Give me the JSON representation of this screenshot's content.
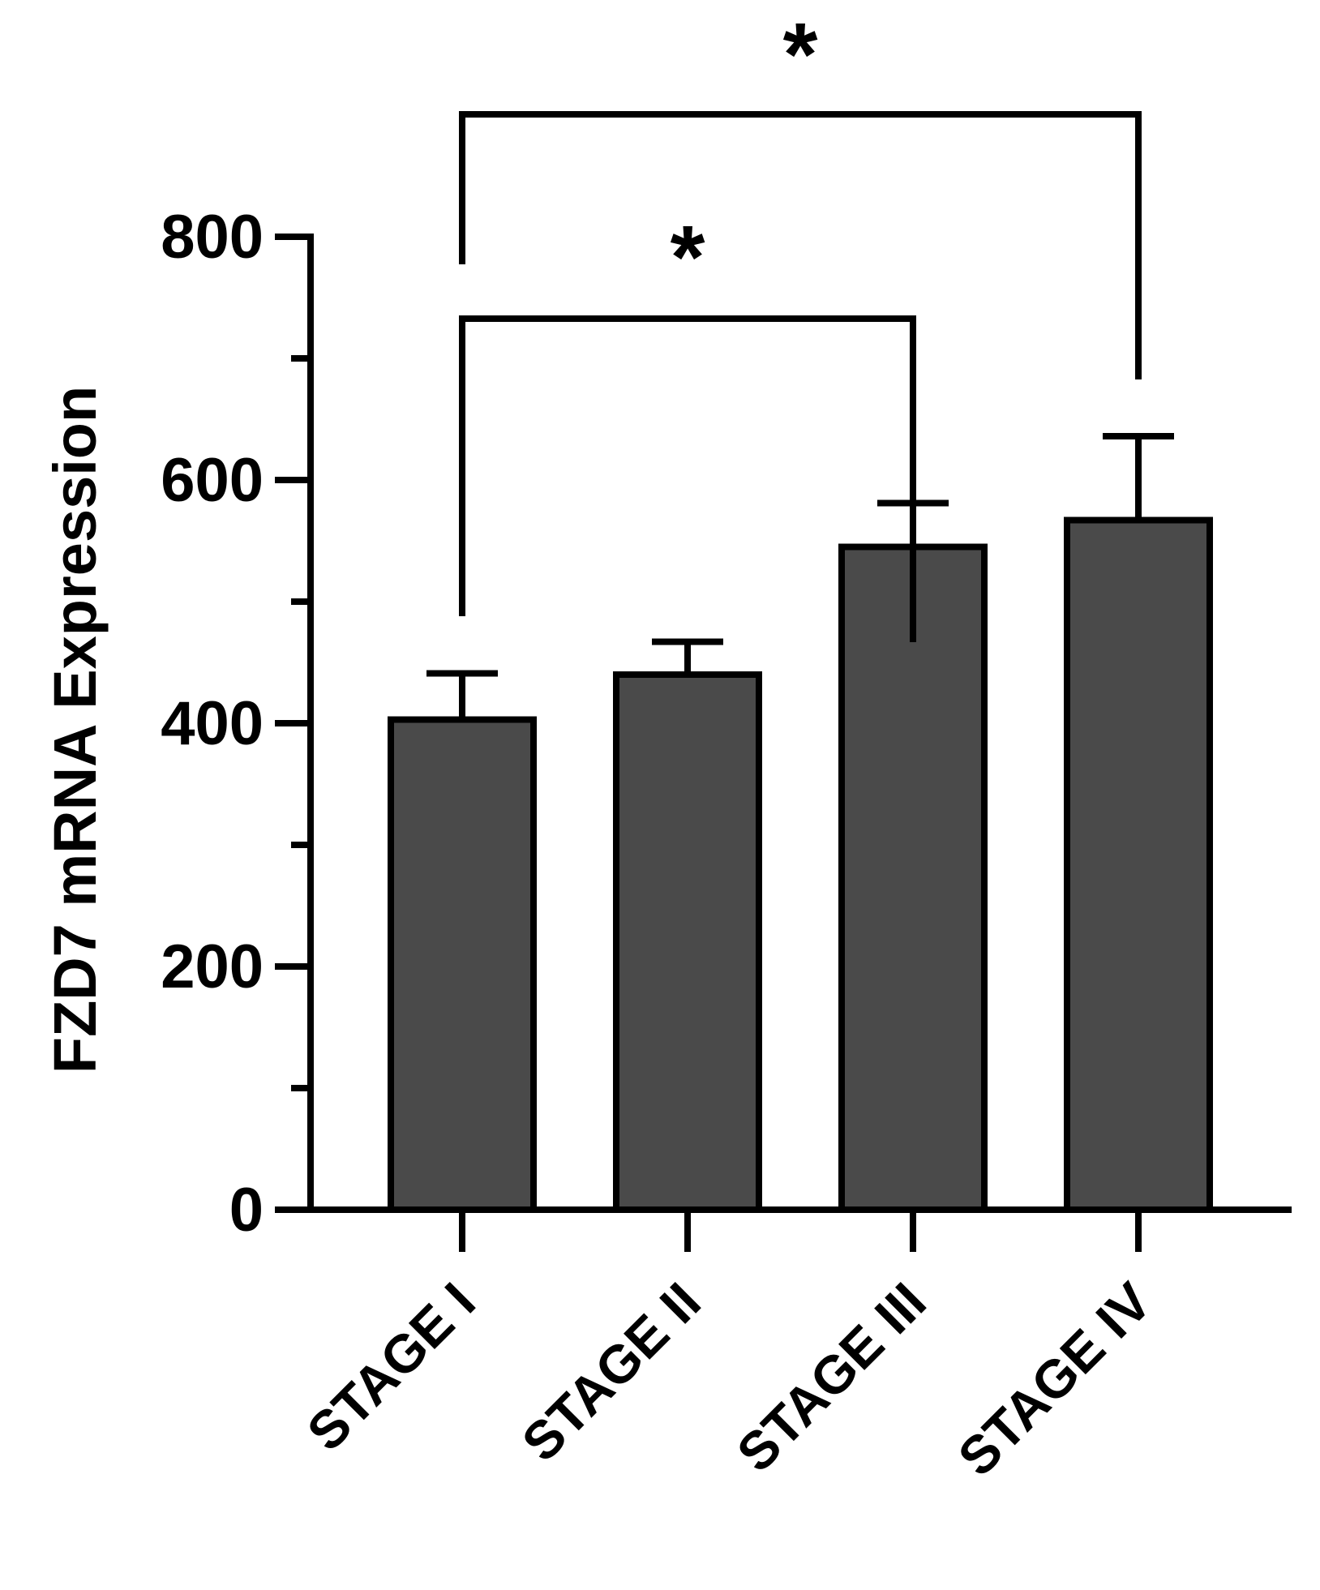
{
  "chart_data": {
    "type": "bar",
    "ylabel": "FZD7 mRNA Expression",
    "categories": [
      "STAGE I",
      "STAGE II",
      "STAGE III",
      "STAGE IV"
    ],
    "values": [
      403,
      440,
      545,
      567
    ],
    "error_upper": [
      441,
      467,
      581,
      636
    ],
    "ylim": [
      0,
      800
    ],
    "y_ticks": [
      0,
      200,
      400,
      600,
      800
    ],
    "y_minor_ticks": [
      100,
      300,
      500,
      700
    ],
    "bar_color": "#4a4a4a",
    "axis_color": "#000000",
    "significance": [
      {
        "from": 0,
        "to": 2,
        "label": "*"
      },
      {
        "from": 0,
        "to": 3,
        "label": "*"
      }
    ]
  }
}
